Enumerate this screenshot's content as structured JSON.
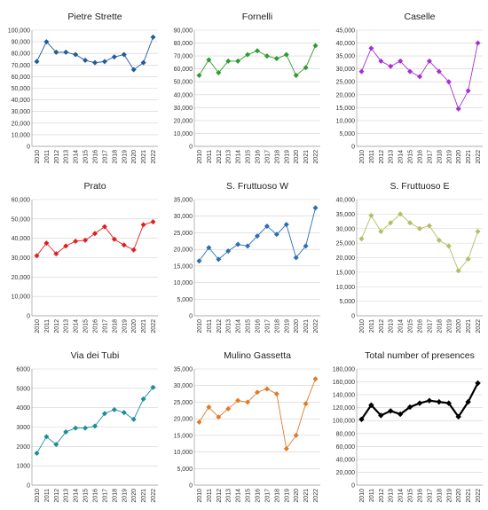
{
  "chart_data": [
    {
      "type": "line",
      "title": "Pietre Strette",
      "color": "#1f5c99",
      "marker": "diamond",
      "x": [
        "2010",
        "2011",
        "2012",
        "2013",
        "2014",
        "2015",
        "2016",
        "2017",
        "2018",
        "2019",
        "2020",
        "2021",
        "2022"
      ],
      "values": [
        73000,
        90000,
        81000,
        81000,
        79000,
        74000,
        72000,
        73000,
        77000,
        79000,
        66000,
        72000,
        94000
      ],
      "ylim": [
        0,
        100000
      ],
      "yticks": [
        0,
        10000,
        20000,
        30000,
        40000,
        50000,
        60000,
        70000,
        80000,
        90000,
        100000
      ],
      "ytick_labels": [
        "0",
        "10,000",
        "20,000",
        "30,000",
        "40,000",
        "50,000",
        "60,000",
        "70,000",
        "80,000",
        "90,000",
        "100,000"
      ],
      "grid": true
    },
    {
      "type": "line",
      "title": "Fornelli",
      "color": "#2e9c2e",
      "marker": "diamond",
      "x": [
        "2010",
        "2011",
        "2012",
        "2013",
        "2014",
        "2015",
        "2016",
        "2017",
        "2018",
        "2019",
        "2020",
        "2021",
        "2022"
      ],
      "values": [
        55000,
        67000,
        57000,
        66000,
        66000,
        71000,
        74000,
        70000,
        68000,
        71000,
        55000,
        61000,
        78000
      ],
      "ylim": [
        0,
        90000
      ],
      "yticks": [
        0,
        10000,
        20000,
        30000,
        40000,
        50000,
        60000,
        70000,
        80000,
        90000
      ],
      "ytick_labels": [
        "0",
        "10,000",
        "20,000",
        "30,000",
        "40,000",
        "50,000",
        "60,000",
        "70,000",
        "80,000",
        "90,000"
      ],
      "grid": true
    },
    {
      "type": "line",
      "title": "Caselle",
      "color": "#a72fd6",
      "marker": "diamond",
      "x": [
        "2010",
        "2011",
        "2012",
        "2013",
        "2014",
        "2015",
        "2016",
        "2017",
        "2018",
        "2019",
        "2020",
        "2021",
        "2022"
      ],
      "values": [
        29000,
        38000,
        33000,
        31000,
        33000,
        29000,
        27000,
        33000,
        29000,
        25000,
        14500,
        21500,
        40000
      ],
      "ylim": [
        0,
        45000
      ],
      "yticks": [
        0,
        5000,
        10000,
        15000,
        20000,
        25000,
        30000,
        35000,
        40000,
        45000
      ],
      "ytick_labels": [
        "0",
        "5,000",
        "10,000",
        "15,000",
        "20,000",
        "25,000",
        "30,000",
        "35,000",
        "40,000",
        "45,000"
      ],
      "grid": true
    },
    {
      "type": "line",
      "title": "Prato",
      "color": "#e02020",
      "marker": "diamond",
      "x": [
        "2010",
        "2011",
        "2012",
        "2013",
        "2014",
        "2015",
        "2016",
        "2017",
        "2018",
        "2019",
        "2020",
        "2021",
        "2022"
      ],
      "values": [
        31000,
        37500,
        32000,
        36000,
        38500,
        39000,
        42500,
        46000,
        39500,
        36500,
        34000,
        47000,
        48500
      ],
      "ylim": [
        0,
        60000
      ],
      "yticks": [
        0,
        10000,
        20000,
        30000,
        40000,
        50000,
        60000
      ],
      "ytick_labels": [
        "0",
        "10,000",
        "20,000",
        "30,000",
        "40,000",
        "50,000",
        "60,000"
      ],
      "grid": true
    },
    {
      "type": "line",
      "title": "S. Fruttuoso W",
      "color": "#2a6fb3",
      "marker": "diamond",
      "x": [
        "2010",
        "2011",
        "2012",
        "2013",
        "2014",
        "2015",
        "2016",
        "2017",
        "2018",
        "2019",
        "2020",
        "2021",
        "2022"
      ],
      "values": [
        16500,
        20500,
        17000,
        19500,
        21500,
        21000,
        24000,
        27000,
        24500,
        27500,
        17500,
        21000,
        32500
      ],
      "ylim": [
        0,
        35000
      ],
      "yticks": [
        0,
        5000,
        10000,
        15000,
        20000,
        25000,
        30000,
        35000
      ],
      "ytick_labels": [
        "0",
        "5,000",
        "10,000",
        "15,000",
        "20,000",
        "25,000",
        "30,000",
        "35,000"
      ],
      "grid": true
    },
    {
      "type": "line",
      "title": "S. Fruttuoso E",
      "color": "#b5bd63",
      "marker": "diamond",
      "x": [
        "2010",
        "2011",
        "2012",
        "2013",
        "2014",
        "2015",
        "2016",
        "2017",
        "2018",
        "2019",
        "2020",
        "2021",
        "2022"
      ],
      "values": [
        26500,
        34500,
        29000,
        32000,
        35000,
        32000,
        30000,
        31000,
        26000,
        24000,
        15500,
        19500,
        29000
      ],
      "ylim": [
        0,
        40000
      ],
      "yticks": [
        0,
        5000,
        10000,
        15000,
        20000,
        25000,
        30000,
        35000,
        40000
      ],
      "ytick_labels": [
        "0",
        "5,000",
        "10,000",
        "15,000",
        "20,000",
        "25,000",
        "30,000",
        "35,000",
        "40,000"
      ],
      "grid": true
    },
    {
      "type": "line",
      "title": "Via dei Tubi",
      "color": "#1c8d99",
      "marker": "diamond",
      "x": [
        "2010",
        "2011",
        "2012",
        "2013",
        "2014",
        "2015",
        "2016",
        "2017",
        "2018",
        "2019",
        "2020",
        "2021",
        "2022"
      ],
      "values": [
        1650,
        2500,
        2100,
        2750,
        2950,
        2950,
        3050,
        3700,
        3900,
        3750,
        3400,
        4450,
        5050
      ],
      "ylim": [
        0,
        6000
      ],
      "yticks": [
        0,
        1000,
        2000,
        3000,
        4000,
        5000,
        6000
      ],
      "ytick_labels": [
        "0",
        "1000",
        "2000",
        "3000",
        "4000",
        "5000",
        "6000"
      ],
      "grid": true
    },
    {
      "type": "line",
      "title": "Mulino Gassetta",
      "color": "#e07b28",
      "marker": "diamond",
      "x": [
        "2010",
        "2011",
        "2012",
        "2013",
        "2014",
        "2015",
        "2016",
        "2017",
        "2018",
        "2019",
        "2020",
        "2021",
        "2022"
      ],
      "values": [
        19000,
        23500,
        20500,
        23000,
        25500,
        25000,
        28000,
        29000,
        27500,
        11000,
        15000,
        24500,
        32000
      ],
      "ylim": [
        0,
        35000
      ],
      "yticks": [
        0,
        5000,
        10000,
        15000,
        20000,
        25000,
        30000,
        35000
      ],
      "ytick_labels": [
        "0",
        "5,000",
        "10,000",
        "15,000",
        "20,000",
        "25,000",
        "30,000",
        "35,000"
      ],
      "grid": true
    },
    {
      "type": "line",
      "title": "Total number of presences",
      "color": "#000000",
      "marker": "diamond",
      "bold": true,
      "x": [
        "2010",
        "2011",
        "2012",
        "2013",
        "2014",
        "2015",
        "2016",
        "2017",
        "2018",
        "2019",
        "2020",
        "2021",
        "2022"
      ],
      "values": [
        102000,
        124000,
        108000,
        115000,
        110000,
        121000,
        127000,
        131000,
        129000,
        127000,
        106000,
        129000,
        158000
      ],
      "ylim": [
        0,
        180000
      ],
      "yticks": [
        0,
        20000,
        40000,
        60000,
        80000,
        100000,
        120000,
        140000,
        160000,
        180000
      ],
      "ytick_labels": [
        "0",
        "20,000",
        "40,000",
        "60,000",
        "80,000",
        "100,000",
        "120,000",
        "140,000",
        "160,000",
        "180,000"
      ],
      "grid": true
    }
  ]
}
